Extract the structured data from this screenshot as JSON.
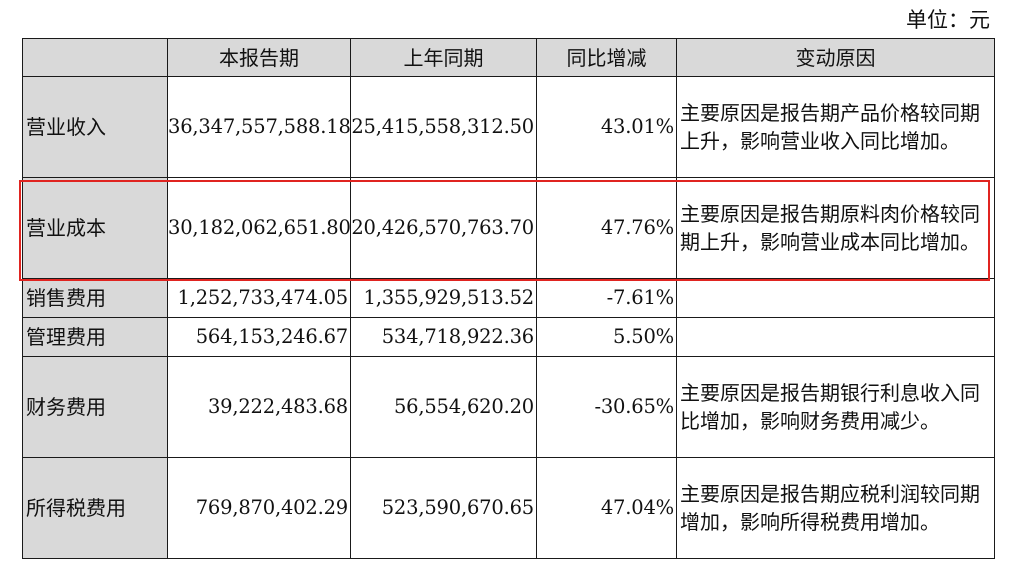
{
  "unit_label": "单位：元",
  "table": {
    "headers": [
      "",
      "本报告期",
      "上年同期",
      "同比增减",
      "变动原因"
    ],
    "rows": [
      {
        "item": "营业收入",
        "current": "36,347,557,588.18",
        "prior": "25,415,558,312.50",
        "change": "43.01%",
        "reason": "主要原因是报告期产品价格较同期上升，影响营业收入同比增加。"
      },
      {
        "item": "营业成本",
        "current": "30,182,062,651.80",
        "prior": "20,426,570,763.70",
        "change": "47.76%",
        "reason": "主要原因是报告期原料肉价格较同期上升，影响营业成本同比增加。"
      },
      {
        "item": "销售费用",
        "current": "1,252,733,474.05",
        "prior": "1,355,929,513.52",
        "change": "-7.61%",
        "reason": ""
      },
      {
        "item": "管理费用",
        "current": "564,153,246.67",
        "prior": "534,718,922.36",
        "change": "5.50%",
        "reason": ""
      },
      {
        "item": "财务费用",
        "current": "39,222,483.68",
        "prior": "56,554,620.20",
        "change": "-30.65%",
        "reason": "主要原因是报告期银行利息收入同比增加，影响财务费用减少。"
      },
      {
        "item": "所得税费用",
        "current": "769,870,402.29",
        "prior": "523,590,670.65",
        "change": "47.04%",
        "reason": "主要原因是报告期应税利润较同期增加，影响所得税费用增加。"
      }
    ]
  },
  "highlight": {
    "color": "#e02420",
    "target_row": "营业成本"
  }
}
